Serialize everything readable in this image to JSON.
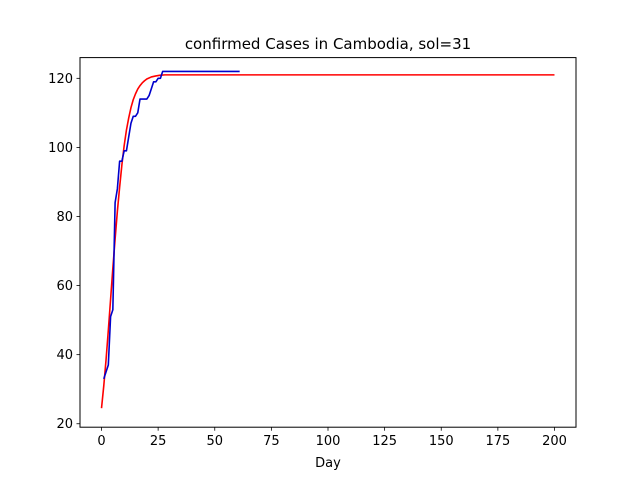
{
  "chart_data": {
    "type": "line",
    "title": "confirmed Cases in Cambodia, sol=31",
    "xlabel": "Day",
    "ylabel": "",
    "xlim": [
      -9.5,
      209.5
    ],
    "ylim": [
      19.0,
      126.0
    ],
    "xticks": [
      0,
      25,
      50,
      75,
      100,
      125,
      150,
      175,
      200
    ],
    "yticks": [
      20,
      40,
      60,
      80,
      100,
      120
    ],
    "grid": false,
    "legend": "none",
    "series": [
      {
        "color": "#ff0000",
        "kind": "logistic-fit",
        "x": [
          0,
          1,
          2,
          3,
          4,
          5,
          6,
          7,
          8,
          9,
          10,
          11,
          12,
          13,
          14,
          15,
          16,
          17,
          18,
          19,
          20,
          22,
          24,
          26,
          28,
          30,
          35,
          40,
          50,
          75,
          100,
          150,
          200
        ],
        "values": [
          24.5,
          31,
          38.5,
          47,
          56,
          65,
          73.5,
          81.5,
          88.5,
          95,
          100.5,
          105,
          108.5,
          111.5,
          113.8,
          115.5,
          116.9,
          117.9,
          118.7,
          119.3,
          119.8,
          120.4,
          120.7,
          120.9,
          121.0,
          121.0,
          121.0,
          121.0,
          121.0,
          121.0,
          121.0,
          121.0,
          121.0
        ]
      },
      {
        "color": "#0000cc",
        "kind": "observed",
        "x": [
          1,
          2,
          3,
          4,
          5,
          6,
          7,
          8,
          9,
          10,
          11,
          12,
          13,
          14,
          15,
          16,
          17,
          18,
          19,
          20,
          21,
          22,
          23,
          24,
          25,
          26,
          27,
          28,
          29,
          30,
          35,
          40,
          45,
          50,
          55,
          61
        ],
        "values": [
          33,
          35,
          37,
          51,
          53,
          84,
          88,
          96,
          96,
          99,
          99,
          103,
          107,
          109,
          109,
          110,
          114,
          114,
          114,
          114,
          115,
          117,
          119,
          119,
          120,
          120,
          122,
          122,
          122,
          122,
          122,
          122,
          122,
          122,
          122,
          122
        ]
      }
    ]
  }
}
